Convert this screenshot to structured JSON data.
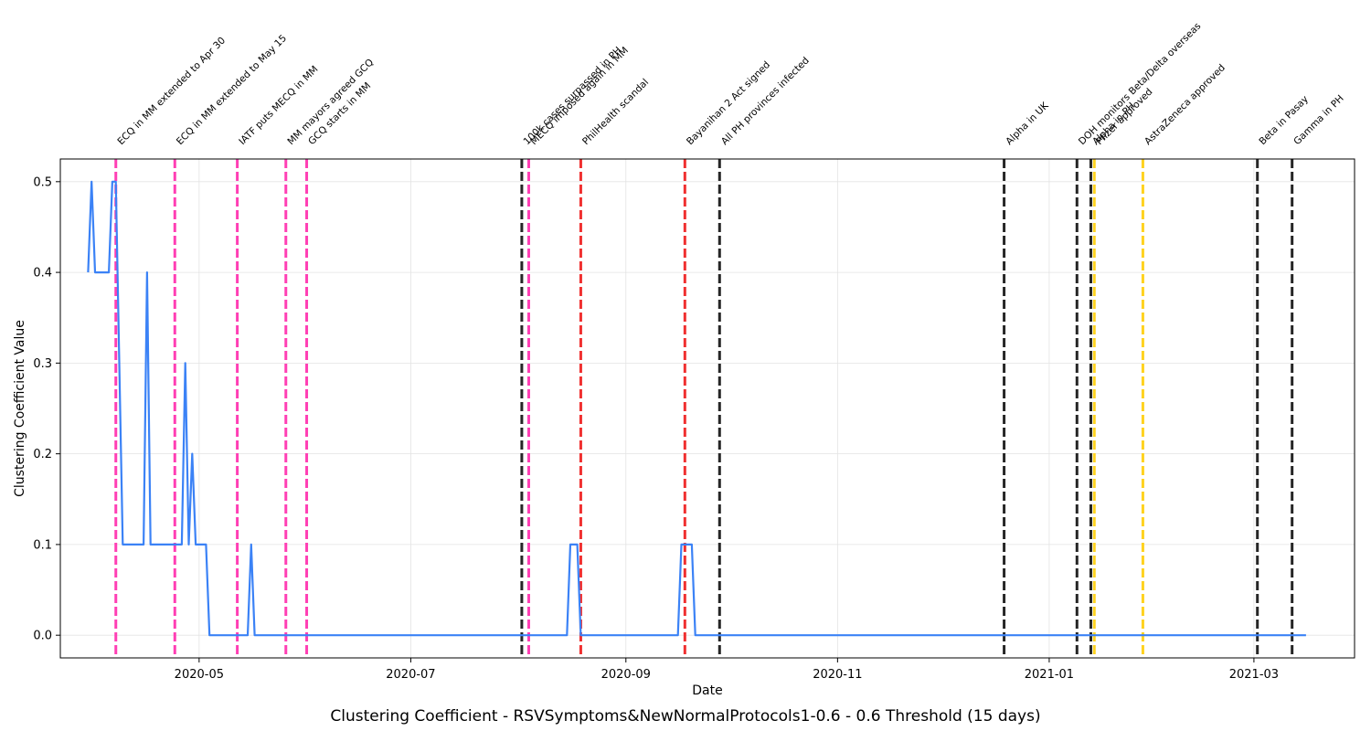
{
  "chart_data": {
    "type": "line",
    "title": "Clustering Coefficient - RSVSymptoms&NewNormalProtocols1-0.6 - 0.6 Threshold (15 days)",
    "xlabel": "Date",
    "ylabel": "Clustering Coefficient Value",
    "xlim": [
      "2020-03-22",
      "2021-03-30"
    ],
    "ylim": [
      -0.025,
      0.525
    ],
    "grid": true,
    "x_ticks": [
      "2020-05",
      "2020-07",
      "2020-09",
      "2020-11",
      "2021-01",
      "2021-03"
    ],
    "y_ticks": [
      "0.0",
      "0.1",
      "0.2",
      "0.3",
      "0.4",
      "0.5"
    ],
    "line_color": "#3b82f6",
    "series": [
      {
        "points": [
          [
            "2020-03-30",
            0.4
          ],
          [
            "2020-03-31",
            0.5
          ],
          [
            "2020-04-01",
            0.4
          ],
          [
            "2020-04-05",
            0.4
          ],
          [
            "2020-04-06",
            0.5
          ],
          [
            "2020-04-07",
            0.5
          ],
          [
            "2020-04-09",
            0.1
          ],
          [
            "2020-04-15",
            0.1
          ],
          [
            "2020-04-16",
            0.4
          ],
          [
            "2020-04-17",
            0.1
          ],
          [
            "2020-04-26",
            0.1
          ],
          [
            "2020-04-27",
            0.3
          ],
          [
            "2020-04-28",
            0.1
          ],
          [
            "2020-04-29",
            0.2
          ],
          [
            "2020-04-30",
            0.1
          ],
          [
            "2020-05-03",
            0.1
          ],
          [
            "2020-05-04",
            0.0
          ],
          [
            "2020-05-15",
            0.0
          ],
          [
            "2020-05-16",
            0.1
          ],
          [
            "2020-05-17",
            0.0
          ],
          [
            "2020-08-15",
            0.0
          ],
          [
            "2020-08-16",
            0.1
          ],
          [
            "2020-08-18",
            0.1
          ],
          [
            "2020-08-19",
            0.0
          ],
          [
            "2020-09-16",
            0.0
          ],
          [
            "2020-09-17",
            0.1
          ],
          [
            "2020-09-20",
            0.1
          ],
          [
            "2020-09-21",
            0.0
          ],
          [
            "2021-03-16",
            0.0
          ]
        ]
      }
    ],
    "events": [
      {
        "date": "2020-04-07",
        "label": "ECQ in MM extended to Apr 30",
        "color": "#ff3fb4"
      },
      {
        "date": "2020-04-24",
        "label": "ECQ in MM extended to May 15",
        "color": "#ff3fb4"
      },
      {
        "date": "2020-05-12",
        "label": "IATF puts MECQ in MM",
        "color": "#ff3fb4"
      },
      {
        "date": "2020-05-26",
        "label": "MM mayors agreed GCQ",
        "color": "#ff3fb4"
      },
      {
        "date": "2020-06-01",
        "label": "GCQ starts in MM",
        "color": "#ff3fb4"
      },
      {
        "date": "2020-08-02",
        "label": "100k cases surpassed in PH",
        "color": "#262626"
      },
      {
        "date": "2020-08-04",
        "label": "MECQ imposed again in MM",
        "color": "#ff3fb4"
      },
      {
        "date": "2020-08-19",
        "label": "PhilHealth scandal",
        "color": "#f03030"
      },
      {
        "date": "2020-09-18",
        "label": "Bayanihan 2 Act signed",
        "color": "#f03030"
      },
      {
        "date": "2020-09-28",
        "label": "All PH provinces infected",
        "color": "#262626"
      },
      {
        "date": "2020-12-19",
        "label": "Alpha in UK",
        "color": "#262626"
      },
      {
        "date": "2021-01-09",
        "label": "DOH monitors Beta/Delta overseas",
        "color": "#262626"
      },
      {
        "date": "2021-01-13",
        "label": "Alpha in PH",
        "color": "#262626"
      },
      {
        "date": "2021-01-14",
        "label": "Pfizer approved",
        "color": "#ffd21f"
      },
      {
        "date": "2021-01-28",
        "label": "AstraZeneca approved",
        "color": "#ffd21f"
      },
      {
        "date": "2021-03-02",
        "label": "Beta in Pasay",
        "color": "#262626"
      },
      {
        "date": "2021-03-12",
        "label": "Gamma in PH",
        "color": "#262626"
      }
    ]
  }
}
